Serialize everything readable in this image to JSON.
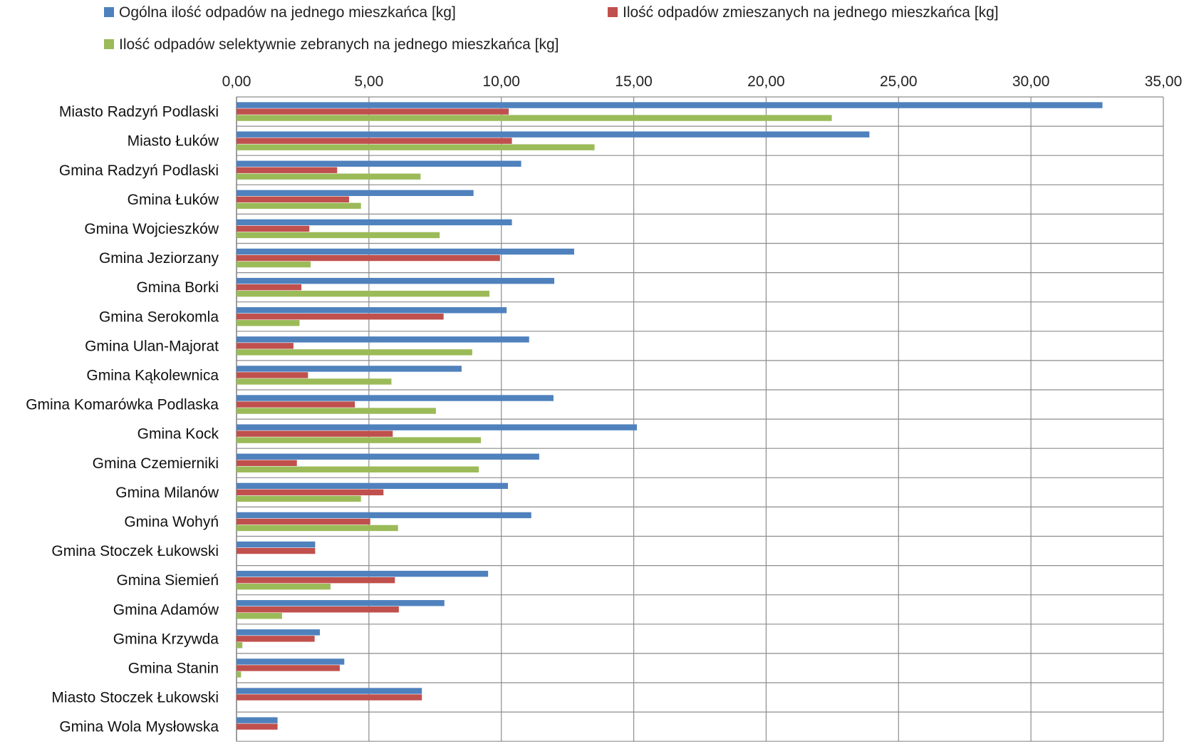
{
  "chart_data": {
    "type": "bar",
    "orientation": "horizontal",
    "title": "",
    "xlabel": "",
    "ylabel": "",
    "xlim": [
      0,
      35
    ],
    "x_ticks": [
      "0,00",
      "5,00",
      "10,00",
      "15,00",
      "20,00",
      "25,00",
      "30,00",
      "35,00"
    ],
    "x_tick_values": [
      0,
      5,
      10,
      15,
      20,
      25,
      30,
      35
    ],
    "x_axis_position": "top",
    "grid": true,
    "legend_position": "top",
    "categories": [
      "Miasto Radzyń Podlaski",
      "Miasto Łuków",
      "Gmina Radzyń Podlaski",
      "Gmina Łuków",
      "Gmina Wojcieszków",
      "Gmina Jeziorzany",
      "Gmina Borki",
      "Gmina Serokomla",
      "Gmina Ulan-Majorat",
      "Gmina Kąkolewnica",
      "Gmina Komarówka Podlaska",
      "Gmina Kock",
      "Gmina Czemierniki",
      "Gmina Milanów",
      "Gmina Wohyń",
      "Gmina Stoczek Łukowski",
      "Gmina Siemień",
      "Gmina Adamów",
      "Gmina Krzywda",
      "Gmina Stanin",
      "Miasto Stoczek Łukowski",
      "Gmina Wola Mysłowska"
    ],
    "series": [
      {
        "name": "Ogólna ilość odpadów na jednego mieszkańca [kg]",
        "color": "#4F81BD",
        "values": [
          32.7,
          23.9,
          10.75,
          8.95,
          10.4,
          12.75,
          12.0,
          10.2,
          11.05,
          8.5,
          11.97,
          15.12,
          11.43,
          10.25,
          11.13,
          2.97,
          9.5,
          7.85,
          3.15,
          4.07,
          7.0,
          1.55
        ]
      },
      {
        "name": "Ilość odpadów zmieszanych na jednego mieszkańca [kg]",
        "color": "#C0504D",
        "values": [
          10.28,
          10.4,
          3.8,
          4.25,
          2.75,
          9.95,
          2.45,
          7.82,
          2.15,
          2.7,
          4.47,
          5.9,
          2.28,
          5.55,
          5.05,
          2.97,
          5.98,
          6.13,
          2.95,
          3.9,
          7.0,
          1.55
        ]
      },
      {
        "name": "Ilość odpadów selektywnie zebranych na jednego mieszkańca [kg]",
        "color": "#9BBB59",
        "values": [
          22.48,
          13.52,
          6.95,
          4.7,
          7.67,
          2.8,
          9.55,
          2.38,
          8.9,
          5.85,
          7.53,
          9.23,
          9.15,
          4.7,
          6.1,
          0,
          3.55,
          1.72,
          0.22,
          0.17,
          0,
          0
        ]
      }
    ]
  }
}
